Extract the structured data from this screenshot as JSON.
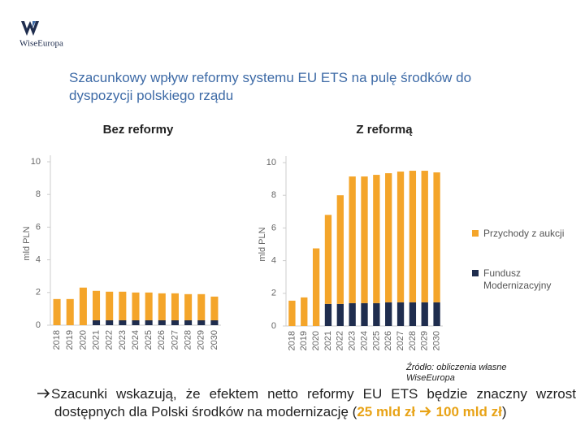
{
  "logo": "WiseEuropa",
  "title": "Szacunkowy wpływ reformy systemu EU ETS na pulę środków do dyspozycji polskiego rządu",
  "chart_data": [
    {
      "type": "bar",
      "stacked": true,
      "title": "Bez reformy",
      "ylabel": "mld PLN",
      "categories": [
        "2018",
        "2019",
        "2020",
        "2021",
        "2022",
        "2023",
        "2024",
        "2025",
        "2026",
        "2027",
        "2028",
        "2029",
        "2030"
      ],
      "series": [
        {
          "color": "#f4a52a",
          "values": [
            1.6,
            1.6,
            2.3,
            1.8,
            1.75,
            1.75,
            1.7,
            1.7,
            1.65,
            1.65,
            1.6,
            1.6,
            1.45
          ]
        },
        {
          "color": "#1f2d4e",
          "values": [
            0,
            0,
            0,
            0.3,
            0.3,
            0.3,
            0.3,
            0.3,
            0.3,
            0.3,
            0.3,
            0.3,
            0.3
          ]
        }
      ],
      "ylim": [
        0,
        10
      ],
      "yticks": [
        0,
        2,
        4,
        6,
        8,
        10
      ],
      "grid": false
    },
    {
      "type": "bar",
      "stacked": true,
      "title": "Z reformą",
      "ylabel": "mld PLN",
      "categories": [
        "2018",
        "2019",
        "2020",
        "2021",
        "2022",
        "2023",
        "2024",
        "2025",
        "2026",
        "2027",
        "2028",
        "2029",
        "2030"
      ],
      "series": [
        {
          "name": "Przychody z aukcji",
          "color": "#f4a52a",
          "values": [
            1.55,
            1.75,
            4.75,
            5.45,
            6.65,
            7.75,
            7.75,
            7.85,
            7.9,
            8.0,
            8.05,
            8.05,
            7.95
          ]
        },
        {
          "name": "Fundusz Modernizacyjny",
          "color": "#1f2d4e",
          "values": [
            0,
            0,
            0,
            1.35,
            1.35,
            1.4,
            1.4,
            1.4,
            1.45,
            1.45,
            1.45,
            1.45,
            1.45
          ]
        }
      ],
      "ylim": [
        0,
        10
      ],
      "yticks": [
        0,
        2,
        4,
        6,
        8,
        10
      ],
      "grid": false,
      "legend": "right"
    }
  ],
  "source": "Źródło: obliczenia własne WiseEuropa",
  "conclusion": {
    "text": "Szacunki wskazują, że efektem netto reformy EU ETS będzie znaczny wzrost dostępnych dla Polski środków na modernizację (",
    "from": "25 mld zł",
    "to": "100 mld zł",
    "end": ")"
  }
}
